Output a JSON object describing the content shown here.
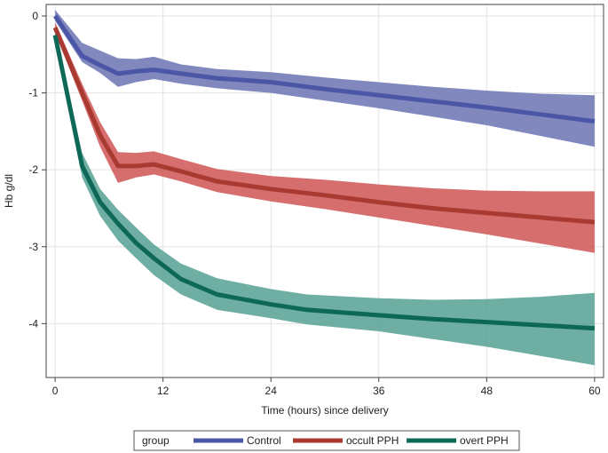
{
  "chart_data": {
    "type": "line",
    "title": "",
    "xlabel": "Time (hours) since delivery",
    "ylabel": "Hb g/dl",
    "xlim": [
      -1,
      61
    ],
    "ylim": [
      -4.7,
      0.15
    ],
    "xticks": [
      0,
      12,
      24,
      36,
      48,
      60
    ],
    "xtick_labels": [
      "0",
      "12",
      "24",
      "36",
      "48",
      "60"
    ],
    "yticks": [
      0,
      -1,
      -2,
      -3,
      -4
    ],
    "ytick_labels": [
      "0",
      "-1",
      "-2",
      "-3",
      "-4"
    ],
    "grid": true,
    "legend": {
      "title": "group",
      "position": "bottom",
      "entries": [
        "Control",
        "occult PPH",
        "overt PPH"
      ]
    },
    "series": [
      {
        "name": "Control",
        "line_color": "#4b56a6",
        "band_color": "#6e77b5",
        "x": [
          0,
          3,
          5,
          7,
          9,
          11,
          14,
          18,
          24,
          30,
          36,
          42,
          48,
          54,
          60
        ],
        "y": [
          0,
          -0.52,
          -0.64,
          -0.75,
          -0.72,
          -0.7,
          -0.75,
          -0.81,
          -0.86,
          -0.95,
          -1.03,
          -1.11,
          -1.19,
          -1.28,
          -1.37
        ],
        "lower": [
          -0.06,
          -0.6,
          -0.74,
          -0.92,
          -0.86,
          -0.82,
          -0.88,
          -0.94,
          -1.0,
          -1.1,
          -1.2,
          -1.31,
          -1.42,
          -1.56,
          -1.7
        ],
        "upper": [
          0.08,
          -0.35,
          -0.45,
          -0.55,
          -0.56,
          -0.53,
          -0.63,
          -0.69,
          -0.73,
          -0.8,
          -0.86,
          -0.92,
          -0.97,
          -1.01,
          -1.03
        ]
      },
      {
        "name": "occult PPH",
        "line_color": "#a83a32",
        "band_color": "#d05a5a",
        "x": [
          0,
          3,
          5,
          7,
          9,
          11,
          14,
          18,
          24,
          30,
          36,
          42,
          48,
          54,
          60
        ],
        "y": [
          -0.15,
          -1.0,
          -1.55,
          -1.95,
          -1.95,
          -1.93,
          -2.02,
          -2.15,
          -2.25,
          -2.33,
          -2.42,
          -2.5,
          -2.56,
          -2.62,
          -2.68
        ],
        "lower": [
          -0.22,
          -1.1,
          -1.7,
          -2.17,
          -2.1,
          -2.06,
          -2.15,
          -2.29,
          -2.41,
          -2.51,
          -2.62,
          -2.73,
          -2.84,
          -2.96,
          -3.08
        ],
        "upper": [
          -0.08,
          -0.88,
          -1.38,
          -1.77,
          -1.78,
          -1.76,
          -1.86,
          -1.99,
          -2.08,
          -2.13,
          -2.19,
          -2.24,
          -2.27,
          -2.28,
          -2.28
        ]
      },
      {
        "name": "overt PPH",
        "line_color": "#0e6858",
        "band_color": "#5aa396",
        "x": [
          0,
          3,
          5,
          7,
          9,
          11,
          14,
          18,
          24,
          28,
          36,
          42,
          48,
          54,
          60
        ],
        "y": [
          -0.25,
          -1.95,
          -2.42,
          -2.7,
          -2.95,
          -3.15,
          -3.42,
          -3.62,
          -3.75,
          -3.82,
          -3.89,
          -3.94,
          -3.98,
          -4.02,
          -4.06
        ],
        "lower": [
          -0.32,
          -2.1,
          -2.6,
          -2.92,
          -3.15,
          -3.37,
          -3.62,
          -3.82,
          -3.93,
          -4.01,
          -4.1,
          -4.2,
          -4.3,
          -4.42,
          -4.54
        ],
        "upper": [
          -0.18,
          -1.78,
          -2.25,
          -2.52,
          -2.75,
          -2.97,
          -3.22,
          -3.41,
          -3.55,
          -3.62,
          -3.67,
          -3.69,
          -3.68,
          -3.65,
          -3.6
        ]
      }
    ]
  }
}
